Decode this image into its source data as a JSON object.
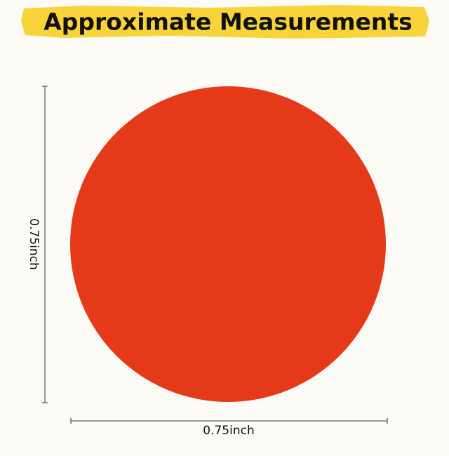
{
  "header": {
    "title": "Approximate Measurements"
  },
  "dimensions": {
    "height": "0.75inch",
    "width": "0.75inch"
  }
}
